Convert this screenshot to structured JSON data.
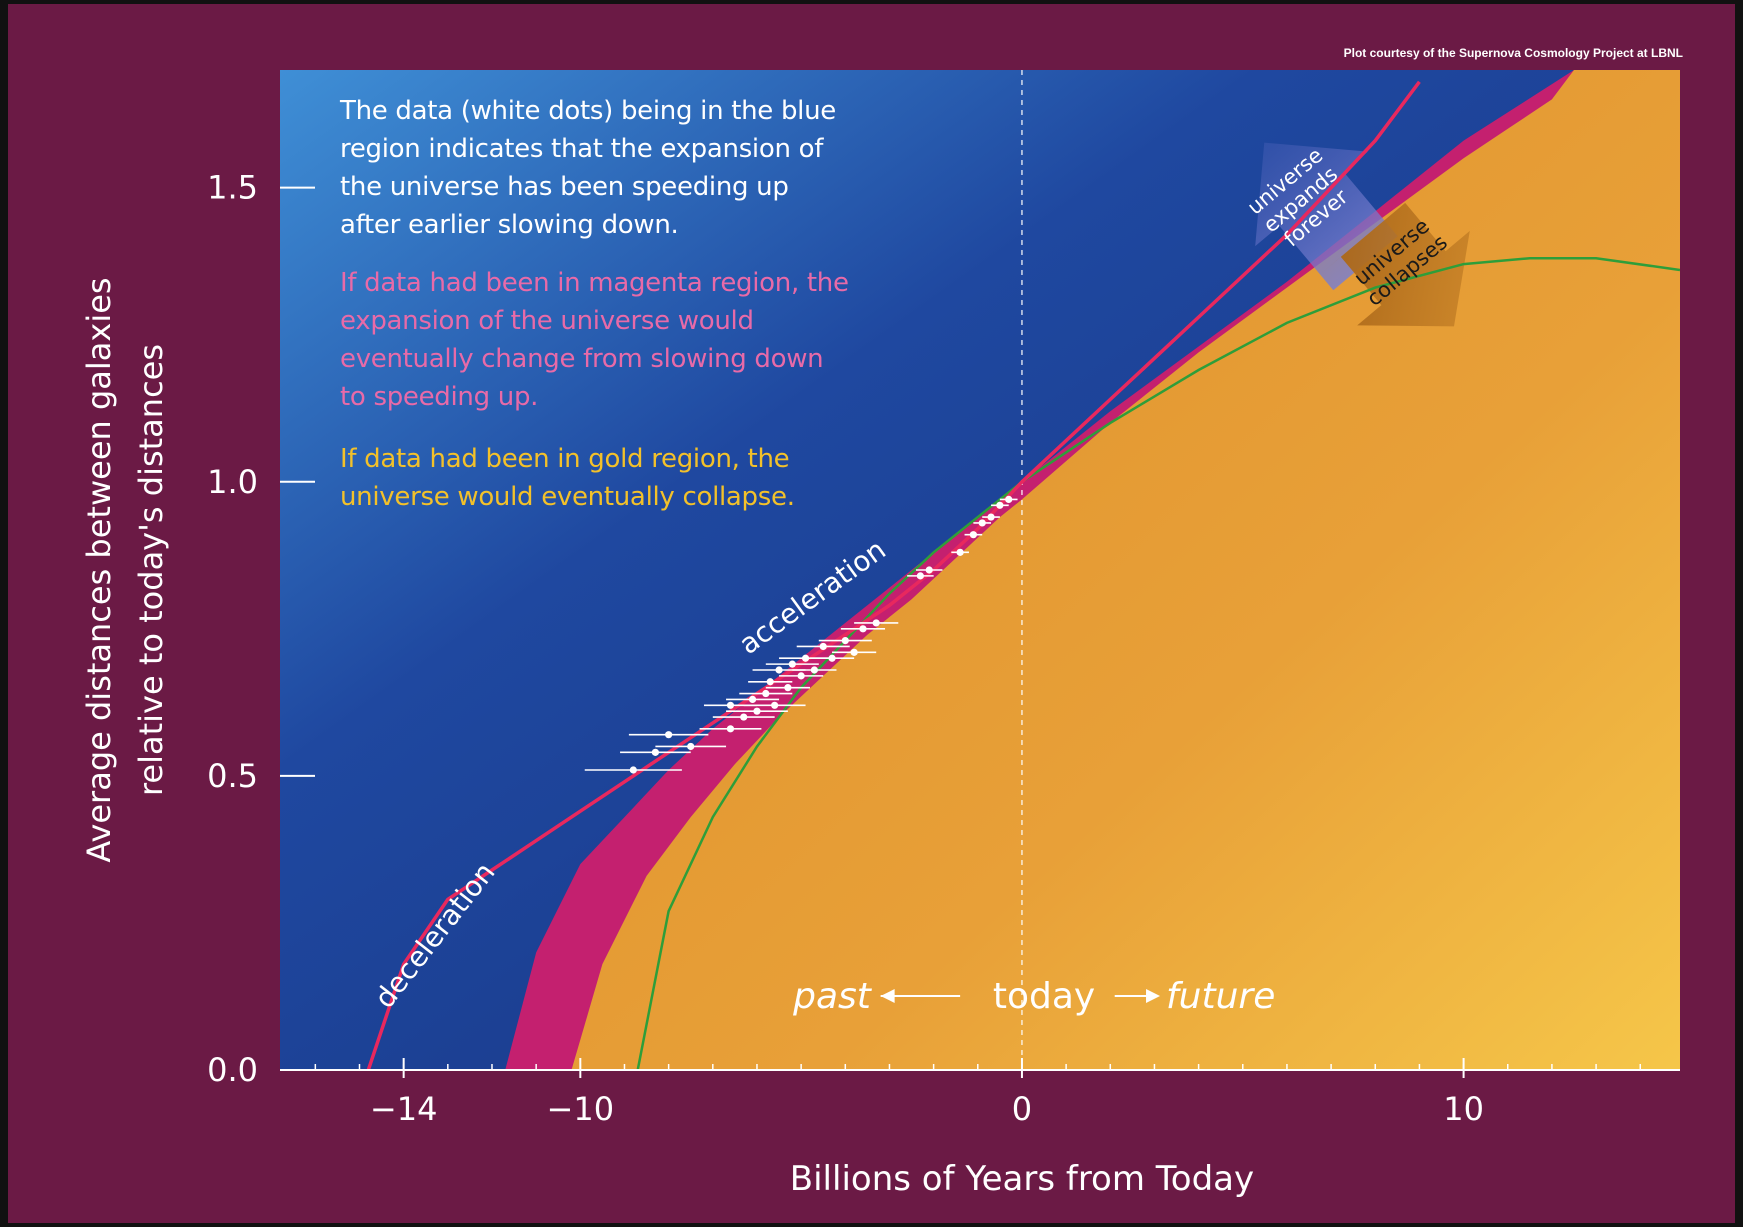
{
  "credit": "Plot courtesy of the Supernova Cosmology Project at LBNL",
  "notes": {
    "blue": "The data (white dots) being in the blue region indicates that the expansion of the universe has been speeding up after earlier slowing down.",
    "blue_lines": [
      "The data (white dots) being in the blue",
      "region indicates that the expansion of",
      "the universe has been speeding up",
      "after earlier slowing down."
    ],
    "magenta_lines": [
      "If data had been in magenta region, the",
      "expansion of the universe would",
      "eventually change from slowing down",
      "to speeding up."
    ],
    "gold_lines": [
      "If data had been in gold region, the",
      "universe would eventually collapse."
    ]
  },
  "colors": {
    "background": "#6b1a45",
    "blue_region": "#1c3f93",
    "magenta_region": "#c4206f",
    "gold_region": "#e49a30",
    "accelerating_curve": "#e8285e",
    "collapse_curve": "#2e9e3a",
    "data_points": "#ffffff",
    "note_blue": "#ffffff",
    "note_magenta": "#e86aa8",
    "note_gold": "#f3c12a"
  },
  "chart_data": {
    "type": "line",
    "xlabel": "Billions of Years from Today",
    "ylabel_lines": [
      "Average distances between galaxies",
      "relative to today's distances"
    ],
    "xlim": [
      -16.8,
      14.9
    ],
    "ylim": [
      0.0,
      1.7
    ],
    "x_ticks": [
      -14,
      -10,
      0,
      10
    ],
    "x_tick_labels": [
      "−14",
      "−10",
      "0",
      "10"
    ],
    "y_ticks": [
      0.0,
      0.5,
      1.0,
      1.5
    ],
    "y_tick_labels": [
      "0.0",
      "0.5",
      "1.0",
      "1.5"
    ],
    "grid": false,
    "series": [
      {
        "key": "accelerating-curve",
        "x": [
          -14.8,
          -14.0,
          -13.0,
          -12.0,
          -11.0,
          -10.0,
          -9.0,
          -8.0,
          -7.0,
          -6.0,
          -5.0,
          -4.0,
          -3.0,
          -2.0,
          -1.0,
          0.0,
          2.0,
          4.0,
          6.0,
          8.0,
          9.0
        ],
        "y": [
          0.0,
          0.18,
          0.29,
          0.34,
          0.39,
          0.44,
          0.49,
          0.54,
          0.59,
          0.64,
          0.69,
          0.74,
          0.79,
          0.85,
          0.92,
          1.0,
          1.14,
          1.28,
          1.42,
          1.58,
          1.68
        ]
      },
      {
        "key": "magenta-boundary",
        "x": [
          -11.7,
          -11.0,
          -10.0,
          -9.0,
          -8.0,
          -7.0,
          -6.0,
          -5.0,
          -4.0,
          -3.0,
          -2.0,
          -1.0,
          0.0,
          2.0,
          4.0,
          6.0,
          8.0,
          10.0,
          12.5
        ],
        "y": [
          0.0,
          0.2,
          0.35,
          0.43,
          0.51,
          0.58,
          0.64,
          0.7,
          0.76,
          0.82,
          0.88,
          0.94,
          1.0,
          1.12,
          1.23,
          1.34,
          1.46,
          1.58,
          1.7
        ]
      },
      {
        "key": "gold-boundary",
        "x": [
          -10.2,
          -9.5,
          -8.5,
          -7.5,
          -6.5,
          -5.5,
          -4.5,
          -3.5,
          -2.5,
          -1.5,
          -0.5,
          0.0,
          2.0,
          4.0,
          6.0,
          8.0,
          10.0,
          12.0,
          12.5
        ],
        "y": [
          0.0,
          0.18,
          0.33,
          0.43,
          0.52,
          0.6,
          0.67,
          0.74,
          0.8,
          0.87,
          0.94,
          0.97,
          1.1,
          1.22,
          1.33,
          1.44,
          1.55,
          1.65,
          1.7
        ]
      },
      {
        "key": "collapse-curve",
        "x": [
          -8.7,
          -8.0,
          -7.0,
          -6.0,
          -5.0,
          -4.0,
          -3.0,
          -2.0,
          -1.0,
          0.0,
          2.0,
          4.0,
          6.0,
          8.0,
          10.0,
          11.5,
          13.0,
          14.9
        ],
        "y": [
          0.0,
          0.27,
          0.43,
          0.55,
          0.65,
          0.73,
          0.81,
          0.88,
          0.94,
          1.0,
          1.1,
          1.19,
          1.27,
          1.33,
          1.37,
          1.38,
          1.38,
          1.36
        ]
      }
    ],
    "data_points": {
      "x": [
        -8.8,
        -8.3,
        -8.0,
        -7.5,
        -6.6,
        -6.6,
        -6.3,
        -6.1,
        -6.0,
        -5.8,
        -5.7,
        -5.6,
        -5.5,
        -5.3,
        -5.2,
        -5.0,
        -4.9,
        -4.7,
        -4.5,
        -4.3,
        -4.0,
        -3.8,
        -3.6,
        -3.3,
        -2.3,
        -2.1,
        -1.4,
        -1.1,
        -0.9,
        -0.7,
        -0.5,
        -0.3
      ],
      "y": [
        0.51,
        0.54,
        0.57,
        0.55,
        0.58,
        0.62,
        0.6,
        0.63,
        0.61,
        0.64,
        0.66,
        0.62,
        0.68,
        0.65,
        0.69,
        0.67,
        0.7,
        0.68,
        0.72,
        0.7,
        0.73,
        0.71,
        0.75,
        0.76,
        0.84,
        0.85,
        0.88,
        0.91,
        0.93,
        0.94,
        0.96,
        0.97
      ],
      "xerr": [
        1.1,
        0.8,
        0.9,
        0.8,
        0.7,
        0.6,
        0.7,
        0.6,
        0.7,
        0.6,
        0.5,
        0.7,
        0.6,
        0.5,
        0.6,
        0.5,
        0.6,
        0.5,
        0.6,
        0.5,
        0.6,
        0.5,
        0.5,
        0.5,
        0.3,
        0.3,
        0.2,
        0.2,
        0.2,
        0.2,
        0.2,
        0.2
      ]
    },
    "today_x": 0,
    "annotations": {
      "deceleration": "deceleration",
      "acceleration": "acceleration",
      "expands": [
        "universe",
        "expands",
        "forever"
      ],
      "collapses": [
        "universe",
        "collapses"
      ],
      "past": "past",
      "today": "today",
      "future": "future"
    }
  }
}
